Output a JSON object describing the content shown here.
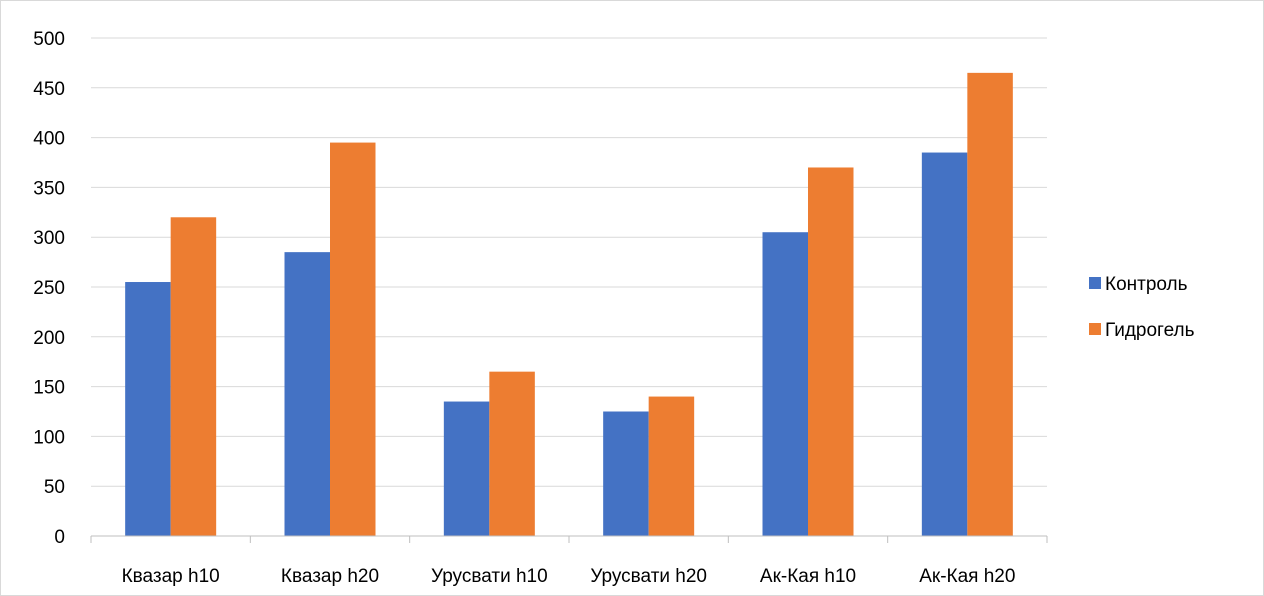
{
  "chart_data": {
    "type": "bar",
    "title": "",
    "xlabel": "",
    "ylabel": "",
    "categories": [
      "Квазар h10",
      "Квазар h20",
      "Урусвати  h10",
      "Урусвати  h20",
      "Ак-Кая  h10",
      "Ак-Кая  h20"
    ],
    "series": [
      {
        "name": "Контроль",
        "color": "#4472C4",
        "values": [
          255,
          285,
          135,
          125,
          305,
          385
        ]
      },
      {
        "name": "Гидрогель",
        "color": "#ED7D31",
        "values": [
          320,
          395,
          165,
          140,
          370,
          465
        ]
      }
    ],
    "ylim": [
      0,
      500
    ],
    "yticks": [
      0,
      50,
      100,
      150,
      200,
      250,
      300,
      350,
      400,
      450,
      500
    ],
    "grid": true,
    "legend_position": "right"
  }
}
